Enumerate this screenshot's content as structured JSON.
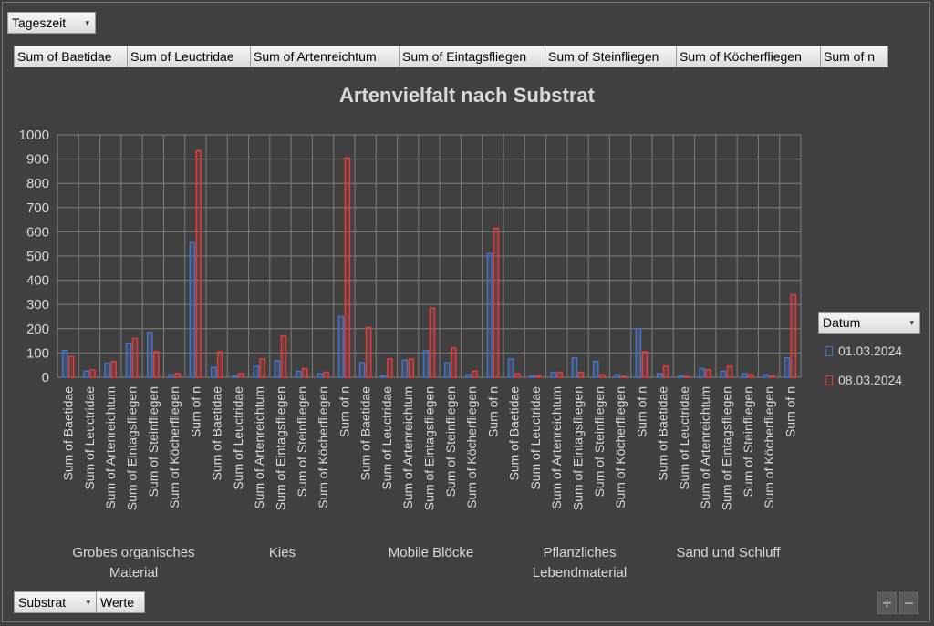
{
  "filters": {
    "report_filter": "Tageszeit"
  },
  "value_fields": [
    "Sum of Baetidae",
    "Sum of Leuctridae",
    "Sum of Artenreichtum",
    "Sum of Eintagsfliegen",
    "Sum of Steinfliegen",
    "Sum of Köcherfliegen",
    "Sum of n"
  ],
  "bottom": {
    "row_field": "Substrat",
    "values_button": "Werte"
  },
  "legend": {
    "title": "Datum",
    "items": [
      "01.03.2024",
      "08.03.2024"
    ]
  },
  "zoom": {
    "plus": "+",
    "minus": "−"
  },
  "colors": {
    "series1": "#4472c4",
    "series2": "#e03c3c",
    "text": "#d9d9d9",
    "grid": "#7f7f7f",
    "background": "#404040"
  },
  "chart_data": {
    "type": "bar",
    "title": "Artenvielfalt nach Substrat",
    "xlabel": "",
    "ylabel": "",
    "ylim": [
      0,
      1000
    ],
    "yticks": [
      0,
      100,
      200,
      300,
      400,
      500,
      600,
      700,
      800,
      900,
      1000
    ],
    "grid": true,
    "legend_position": "right",
    "groups": [
      "Grobes organisches Material",
      "Kies",
      "Mobile Blöcke",
      "Pflanzliches Lebendmaterial",
      "Sand und Schluff"
    ],
    "categories": [
      "Sum of Baetidae",
      "Sum of Leuctridae",
      "Sum of Artenreichtum",
      "Sum of Eintagsfliegen",
      "Sum of Steinfliegen",
      "Sum of Köcherfliegen",
      "Sum of n"
    ],
    "series": [
      {
        "name": "01.03.2024",
        "values": [
          [
            110,
            25,
            58,
            140,
            185,
            10,
            555
          ],
          [
            40,
            5,
            45,
            68,
            25,
            15,
            250
          ],
          [
            60,
            5,
            70,
            110,
            60,
            10,
            510
          ],
          [
            75,
            5,
            20,
            80,
            65,
            10,
            200
          ],
          [
            15,
            5,
            35,
            25,
            15,
            10,
            80
          ]
        ]
      },
      {
        "name": "08.03.2024",
        "values": [
          [
            85,
            30,
            65,
            160,
            105,
            15,
            935
          ],
          [
            105,
            15,
            75,
            170,
            35,
            20,
            905
          ],
          [
            205,
            75,
            75,
            285,
            120,
            25,
            615
          ],
          [
            15,
            5,
            20,
            20,
            10,
            3,
            105
          ],
          [
            45,
            3,
            30,
            45,
            10,
            5,
            340
          ]
        ]
      }
    ]
  }
}
